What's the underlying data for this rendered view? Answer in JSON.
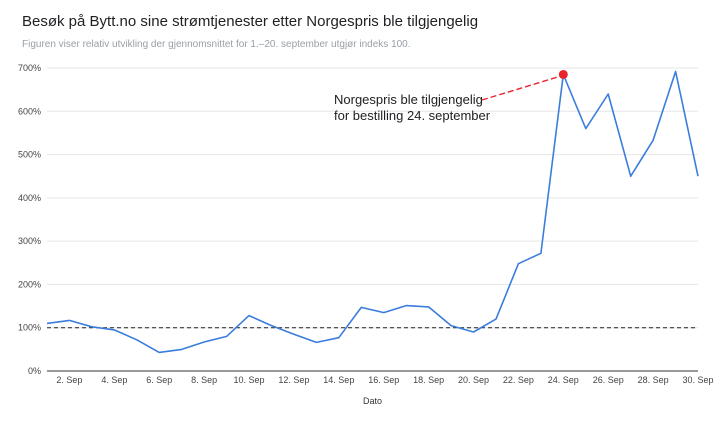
{
  "chart_data": {
    "type": "line",
    "title": "Besøk på Bytt.no sine strømtjenester etter Norgespris ble tilgjengelig",
    "subtitle": "Figuren viser relativ utvikling der gjennomsnittet for 1.–20. september utgjør indeks 100.",
    "xlabel": "Dato",
    "ylabel": "",
    "ylim": [
      0,
      700
    ],
    "yticks": [
      0,
      100,
      200,
      300,
      400,
      500,
      600,
      700
    ],
    "ytick_labels": [
      "0%",
      "100%",
      "200%",
      "300%",
      "400%",
      "500%",
      "600%",
      "700%"
    ],
    "xlim": [
      1,
      30
    ],
    "xticks": [
      2,
      4,
      6,
      8,
      10,
      12,
      14,
      16,
      18,
      20,
      22,
      24,
      26,
      28,
      30
    ],
    "xtick_labels": [
      "2. Sep",
      "4. Sep",
      "6. Sep",
      "8. Sep",
      "10. Sep",
      "12. Sep",
      "14. Sep",
      "16. Sep",
      "18. Sep",
      "20. Sep",
      "22. Sep",
      "24. Sep",
      "26. Sep",
      "28. Sep",
      "30. Sep"
    ],
    "grid": "horizontal",
    "baseline": 100,
    "series": [
      {
        "color": "#3b7ddd",
        "x": [
          1,
          2,
          3,
          4,
          5,
          6,
          7,
          8,
          9,
          10,
          11,
          12,
          13,
          14,
          15,
          16,
          17,
          18,
          19,
          20,
          21,
          22,
          23,
          24,
          25,
          26,
          27,
          28,
          29,
          30
        ],
        "values": [
          110,
          117,
          102,
          95,
          72,
          43,
          50,
          67,
          80,
          128,
          105,
          85,
          66,
          77,
          147,
          135,
          151,
          148,
          105,
          90,
          120,
          248,
          272,
          685,
          560,
          640,
          450,
          533,
          692,
          450
        ]
      }
    ],
    "highlight": {
      "x": 24,
      "y": 685,
      "color": "#e8242c"
    },
    "annotation": {
      "lines": [
        "Norgespris ble tilgjengelig",
        "for bestilling 24. september"
      ]
    }
  }
}
